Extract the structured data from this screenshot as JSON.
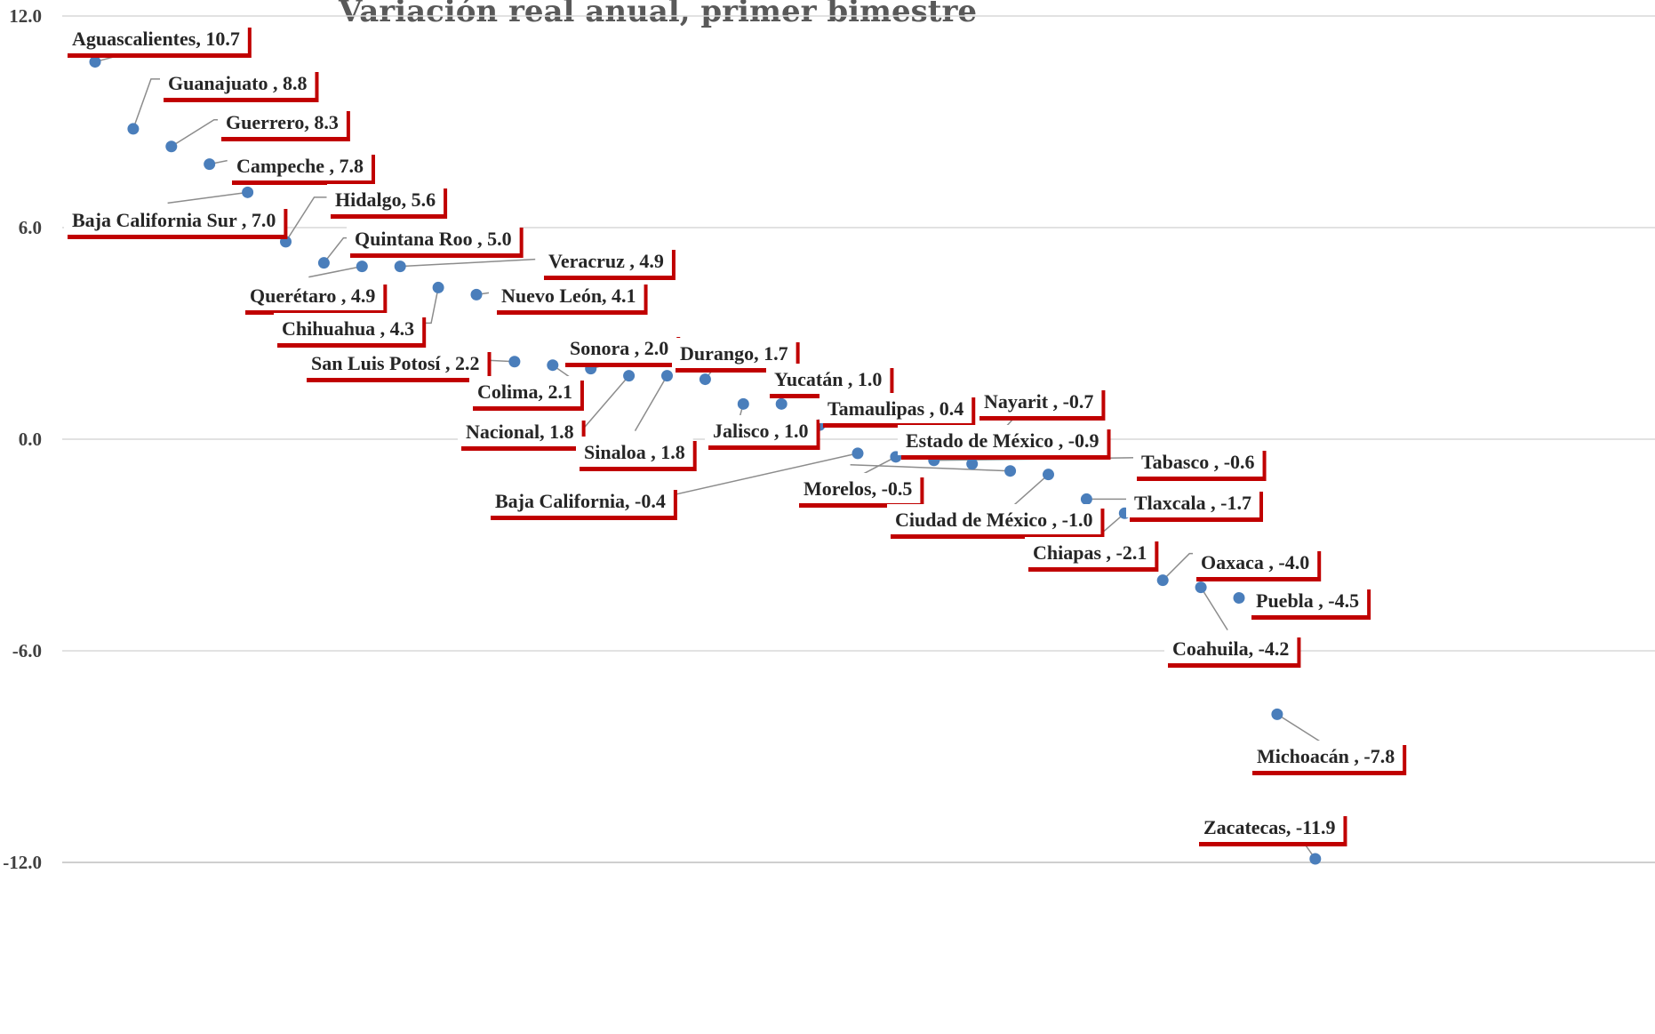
{
  "chart_data": {
    "type": "scatter",
    "title": "Variación real anual, primer bimestre",
    "ylim": [
      -12,
      12
    ],
    "yticks": [
      "12.0",
      "6.0",
      "0.0",
      "-6.0",
      "-12.0"
    ],
    "grid": true,
    "point_color": "#4a7ebb",
    "label_shadow_color": "#c00000",
    "points": [
      {
        "name": "Aguascalientes",
        "label": "Aguascalientes, 10.7",
        "x": 1,
        "y": 10.7
      },
      {
        "name": "Guanajuato",
        "label": "Guanajuato , 8.8",
        "x": 2,
        "y": 8.8
      },
      {
        "name": "Guerrero",
        "label": "Guerrero, 8.3",
        "x": 3,
        "y": 8.3
      },
      {
        "name": "Campeche",
        "label": "Campeche , 7.8",
        "x": 4,
        "y": 7.8
      },
      {
        "name": "Baja California Sur",
        "label": "Baja California Sur , 7.0",
        "x": 5,
        "y": 7.0
      },
      {
        "name": "Hidalgo",
        "label": "Hidalgo, 5.6",
        "x": 6,
        "y": 5.6
      },
      {
        "name": "Quintana Roo",
        "label": "Quintana Roo , 5.0",
        "x": 7,
        "y": 5.0
      },
      {
        "name": "Querétaro",
        "label": "Querétaro , 4.9",
        "x": 8,
        "y": 4.9
      },
      {
        "name": "Veracruz",
        "label": "Veracruz , 4.9",
        "x": 9,
        "y": 4.9
      },
      {
        "name": "Chihuahua",
        "label": "Chihuahua , 4.3",
        "x": 10,
        "y": 4.3
      },
      {
        "name": "Nuevo León",
        "label": "Nuevo León, 4.1",
        "x": 11,
        "y": 4.1
      },
      {
        "name": "San Luis Potosí",
        "label": "San Luis Potosí , 2.2",
        "x": 12,
        "y": 2.2
      },
      {
        "name": "Colima",
        "label": "Colima, 2.1",
        "x": 13,
        "y": 2.1
      },
      {
        "name": "Sonora",
        "label": "Sonora , 2.0",
        "x": 14,
        "y": 2.0
      },
      {
        "name": "Nacional",
        "label": "Nacional, 1.8",
        "x": 15,
        "y": 1.8
      },
      {
        "name": "Sinaloa",
        "label": "Sinaloa , 1.8",
        "x": 16,
        "y": 1.8
      },
      {
        "name": "Durango",
        "label": "Durango, 1.7",
        "x": 17,
        "y": 1.7
      },
      {
        "name": "Jalisco",
        "label": "Jalisco , 1.0",
        "x": 18,
        "y": 1.0
      },
      {
        "name": "Yucatán",
        "label": "Yucatán , 1.0",
        "x": 19,
        "y": 1.0
      },
      {
        "name": "Tamaulipas",
        "label": "Tamaulipas , 0.4",
        "x": 20,
        "y": 0.4
      },
      {
        "name": "Baja California",
        "label": "Baja California, -0.4",
        "x": 21,
        "y": -0.4
      },
      {
        "name": "Morelos",
        "label": "Morelos, -0.5",
        "x": 22,
        "y": -0.5
      },
      {
        "name": "Tabasco",
        "label": "Tabasco , -0.6",
        "x": 23,
        "y": -0.6
      },
      {
        "name": "Nayarit",
        "label": "Nayarit , -0.7",
        "x": 24,
        "y": -0.7
      },
      {
        "name": "Estado de México",
        "label": "Estado de  México , -0.9",
        "x": 25,
        "y": -0.9
      },
      {
        "name": "Ciudad de México",
        "label": "Ciudad de México , -1.0",
        "x": 26,
        "y": -1.0
      },
      {
        "name": "Tlaxcala",
        "label": "Tlaxcala , -1.7",
        "x": 27,
        "y": -1.7
      },
      {
        "name": "Chiapas",
        "label": "Chiapas , -2.1",
        "x": 28,
        "y": -2.1
      },
      {
        "name": "Oaxaca",
        "label": "Oaxaca , -4.0",
        "x": 29,
        "y": -4.0
      },
      {
        "name": "Coahuila",
        "label": "Coahuila, -4.2",
        "x": 30,
        "y": -4.2
      },
      {
        "name": "Puebla",
        "label": "Puebla , -4.5",
        "x": 31,
        "y": -4.5
      },
      {
        "name": "Michoacán",
        "label": "Michoacán , -7.8",
        "x": 32,
        "y": -7.8
      },
      {
        "name": "Zacatecas",
        "label": "Zacatecas, -11.9",
        "x": 33,
        "y": -11.9
      }
    ]
  }
}
